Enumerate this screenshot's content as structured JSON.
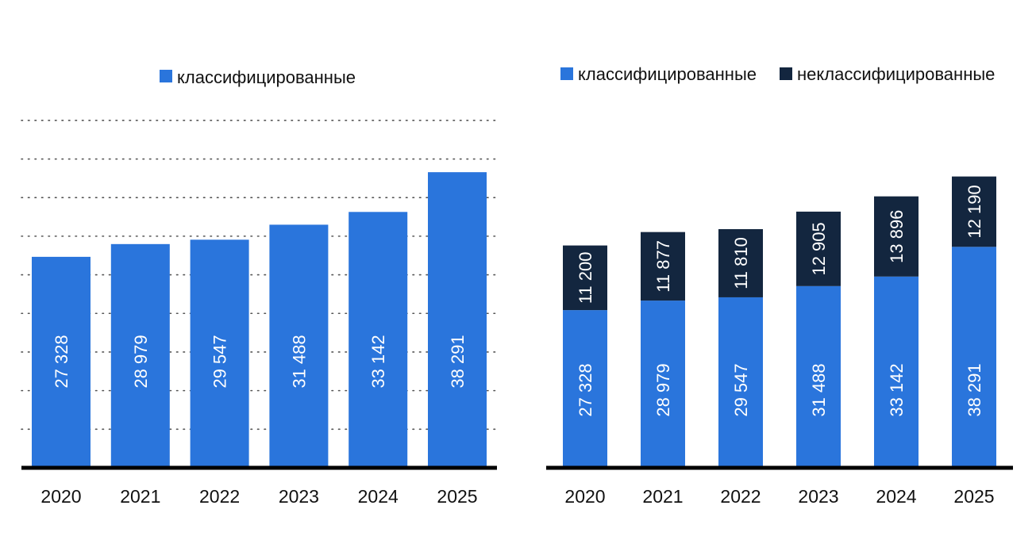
{
  "colors": {
    "classified": "#2a75dc",
    "unclassified": "#13263f",
    "axis": "#000000",
    "grid": "#555555"
  },
  "chart_data": [
    {
      "type": "bar",
      "title": "",
      "xlabel": "",
      "ylabel": "",
      "ylim": [
        0,
        45000
      ],
      "grid": true,
      "legend": "top-center",
      "categories": [
        "2020",
        "2021",
        "2022",
        "2023",
        "2024",
        "2025"
      ],
      "series": [
        {
          "name": "классифицированные",
          "color": "#2a75dc",
          "values": [
            27328,
            28979,
            29547,
            31488,
            33142,
            38291
          ],
          "labels": [
            "27 328",
            "28 979",
            "29 547",
            "31 488",
            "33 142",
            "38 291"
          ]
        }
      ]
    },
    {
      "type": "bar",
      "stacked": true,
      "title": "",
      "xlabel": "",
      "ylabel": "",
      "grid": false,
      "legend": "top-center",
      "categories": [
        "2020",
        "2021",
        "2022",
        "2023",
        "2024",
        "2025"
      ],
      "series": [
        {
          "name": "классифицированные",
          "color": "#2a75dc",
          "values": [
            27328,
            28979,
            29547,
            31488,
            33142,
            38291
          ],
          "labels": [
            "27 328",
            "28 979",
            "29 547",
            "31 488",
            "33 142",
            "38 291"
          ]
        },
        {
          "name": "неклассифицированные",
          "color": "#13263f",
          "values": [
            11200,
            11877,
            11810,
            12905,
            13896,
            12190
          ],
          "labels": [
            "11 200",
            "11 877",
            "11 810",
            "12 905",
            "13 896",
            "12 190"
          ]
        }
      ]
    }
  ]
}
